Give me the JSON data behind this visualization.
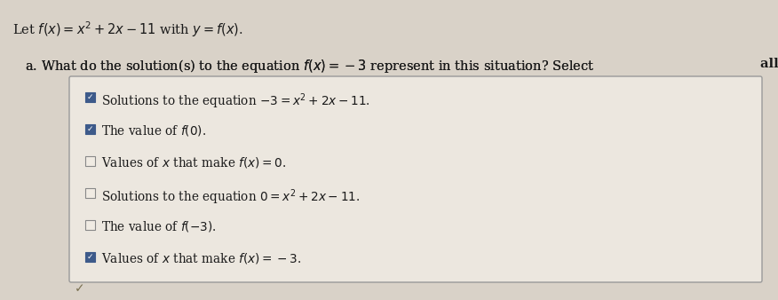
{
  "background_color": "#d9d2c8",
  "title_text": "Let $f(x) = x^2 + 2x - 11$ with $y = f(x)$.",
  "question_part1": "a. What do the solution(s) to the equation $f(x) =  - 3$ represent in this situation? Select ",
  "question_part2": "all that apply.",
  "box_bg": "#ece7df",
  "box_border": "#999999",
  "items": [
    {
      "checked": true,
      "text": "Solutions to the equation $-3 = x^2 + 2x - 11$."
    },
    {
      "checked": true,
      "text": "The value of $f(0)$."
    },
    {
      "checked": false,
      "text": "Values of $x$ that make $f(x) = 0$."
    },
    {
      "checked": false,
      "text": "Solutions to the equation $0 = x^2 + 2x - 11$."
    },
    {
      "checked": false,
      "text": "The value of $f(-3)$."
    },
    {
      "checked": true,
      "text": "Values of $x$ that make $f(x) = -3$."
    }
  ],
  "title_fontsize": 10.5,
  "question_fontsize": 10.5,
  "item_fontsize": 9.8,
  "checkbox_checked_color": "#3d5a8a",
  "checkbox_border_checked": "#3d5a8a",
  "checkbox_border_unchecked": "#888888",
  "text_color": "#1a1a1a",
  "footer_check_color": "#7a7050"
}
